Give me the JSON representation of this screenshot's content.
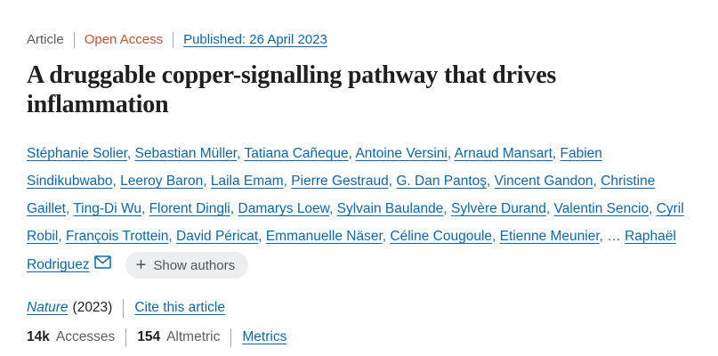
{
  "meta_row": {
    "type_label": "Article",
    "access_label": "Open Access",
    "published_link": "Published: 26 April 2023"
  },
  "title_lines": [
    "A druggable copper-signalling pathway that drives",
    "inflammation"
  ],
  "authors": {
    "plus_icon": "+",
    "show_authors_label": "Show authors",
    "lines": [
      [
        {
          "text": "Stéphanie Solier",
          "link": true
        },
        {
          "text": ", ",
          "link": false
        },
        {
          "text": "Sebastian Müller",
          "link": true
        },
        {
          "text": ", ",
          "link": false
        },
        {
          "text": "Tatiana Cañeque",
          "link": true
        },
        {
          "text": ", ",
          "link": false
        },
        {
          "text": "Antoine Versini",
          "link": true
        },
        {
          "text": ", ",
          "link": false
        },
        {
          "text": "Arnaud Mansart",
          "link": true
        },
        {
          "text": ", ",
          "link": false
        },
        {
          "text": "Fabien",
          "link": true
        }
      ],
      [
        {
          "text": "Sindikubwabo",
          "link": true
        },
        {
          "text": ", ",
          "link": false
        },
        {
          "text": "Leeroy Baron",
          "link": true
        },
        {
          "text": ", ",
          "link": false
        },
        {
          "text": "Laila Emam",
          "link": true
        },
        {
          "text": ", ",
          "link": false
        },
        {
          "text": "Pierre Gestraud",
          "link": true
        },
        {
          "text": ", ",
          "link": false
        },
        {
          "text": "G. Dan Pantoş",
          "link": true
        },
        {
          "text": ", ",
          "link": false
        },
        {
          "text": "Vincent Gandon",
          "link": true
        },
        {
          "text": ", ",
          "link": false
        },
        {
          "text": "Christine",
          "link": true
        }
      ],
      [
        {
          "text": "Gaillet",
          "link": true
        },
        {
          "text": ", ",
          "link": false
        },
        {
          "text": "Ting-Di Wu",
          "link": true
        },
        {
          "text": ", ",
          "link": false
        },
        {
          "text": "Florent Dingli",
          "link": true
        },
        {
          "text": ", ",
          "link": false
        },
        {
          "text": "Damarys Loew",
          "link": true
        },
        {
          "text": ", ",
          "link": false
        },
        {
          "text": "Sylvain Baulande",
          "link": true
        },
        {
          "text": ", ",
          "link": false
        },
        {
          "text": "Sylvère Durand",
          "link": true
        },
        {
          "text": ", ",
          "link": false
        },
        {
          "text": "Valentin Sencio",
          "link": true
        },
        {
          "text": ", ",
          "link": false
        },
        {
          "text": "Cyril",
          "link": true
        }
      ],
      [
        {
          "text": "Robil",
          "link": true
        },
        {
          "text": ", ",
          "link": false
        },
        {
          "text": "François Trottein",
          "link": true
        },
        {
          "text": ", ",
          "link": false
        },
        {
          "text": "David Péricat",
          "link": true
        },
        {
          "text": ", ",
          "link": false
        },
        {
          "text": "Emmanuelle Näser",
          "link": true
        },
        {
          "text": ", ",
          "link": false
        },
        {
          "text": "Céline Cougoule",
          "link": true
        },
        {
          "text": ", ",
          "link": false
        },
        {
          "text": "Etienne Meunier",
          "link": true
        },
        {
          "text": ", … ",
          "link": false
        },
        {
          "text": "Raphaël",
          "link": true
        }
      ],
      [
        {
          "text": "Rodriguez",
          "link": true
        }
      ]
    ]
  },
  "citation_row": {
    "journal": "Nature",
    "year": "(2023)",
    "cite_link": "Cite this article"
  },
  "metrics_row": {
    "accesses_value": "14k",
    "accesses_label": "Accesses",
    "altmetric_value": "154",
    "altmetric_label": "Altmetric",
    "metrics_link": "Metrics"
  },
  "colors": {
    "link_blue": "#0a68b1",
    "open_access_orange": "#c6512e",
    "text_dark": "#222222",
    "text_gray": "#5f5f5f",
    "divider_gray": "#a6a6a6",
    "button_bg": "#edeef0",
    "button_text": "#555555",
    "page_bg": "#ffffff"
  }
}
